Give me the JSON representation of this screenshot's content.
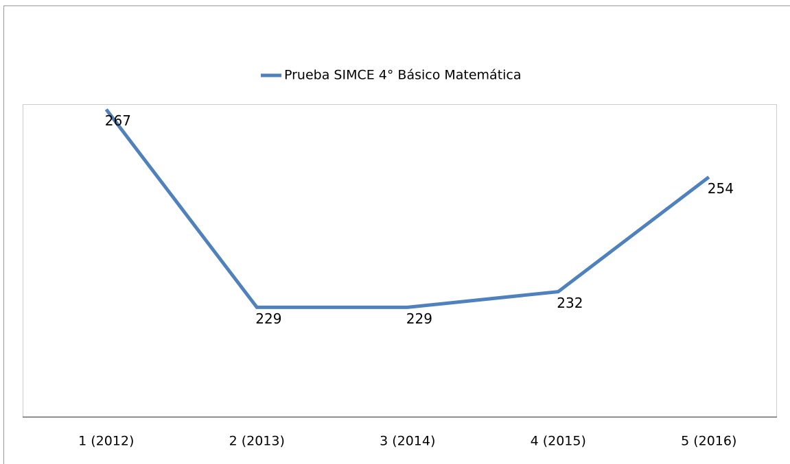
{
  "chart_data": {
    "type": "line",
    "categories": [
      "1 (2012)",
      "2 (2013)",
      "3 (2014)",
      "4 (2015)",
      "5 (2016)"
    ],
    "series": [
      {
        "name": "Prueba SIMCE 4° Básico Matemática",
        "color": "#4f81bd",
        "values": [
          267,
          229,
          229,
          232,
          254
        ]
      }
    ],
    "ylim": [
      208,
      268
    ],
    "legend": "top"
  }
}
